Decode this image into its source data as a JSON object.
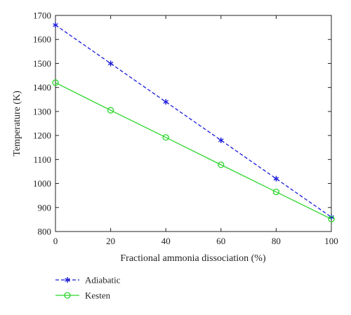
{
  "chart_data": {
    "type": "line",
    "xlabel": "Fractional ammonia dissociation (%)",
    "ylabel": "Temperature (K)",
    "xlim": [
      0,
      100
    ],
    "ylim": [
      800,
      1700
    ],
    "xticks": [
      0,
      20,
      40,
      60,
      80,
      100
    ],
    "yticks": [
      800,
      900,
      1000,
      1100,
      1200,
      1300,
      1400,
      1500,
      1600,
      1700
    ],
    "x": [
      0,
      20,
      40,
      60,
      80,
      100
    ],
    "grid": false,
    "legend_position": "bottom-left-outside",
    "series": [
      {
        "name": "Adiabatic",
        "values": [
          1660,
          1500,
          1340,
          1180,
          1020,
          860
        ],
        "color": "#1a1adb",
        "line_style": "dashed",
        "marker": "asterisk"
      },
      {
        "name": "Kesten",
        "values": [
          1420,
          1305,
          1192,
          1078,
          965,
          852
        ],
        "color": "#2bd62b",
        "line_style": "solid",
        "marker": "open-circle"
      }
    ]
  }
}
